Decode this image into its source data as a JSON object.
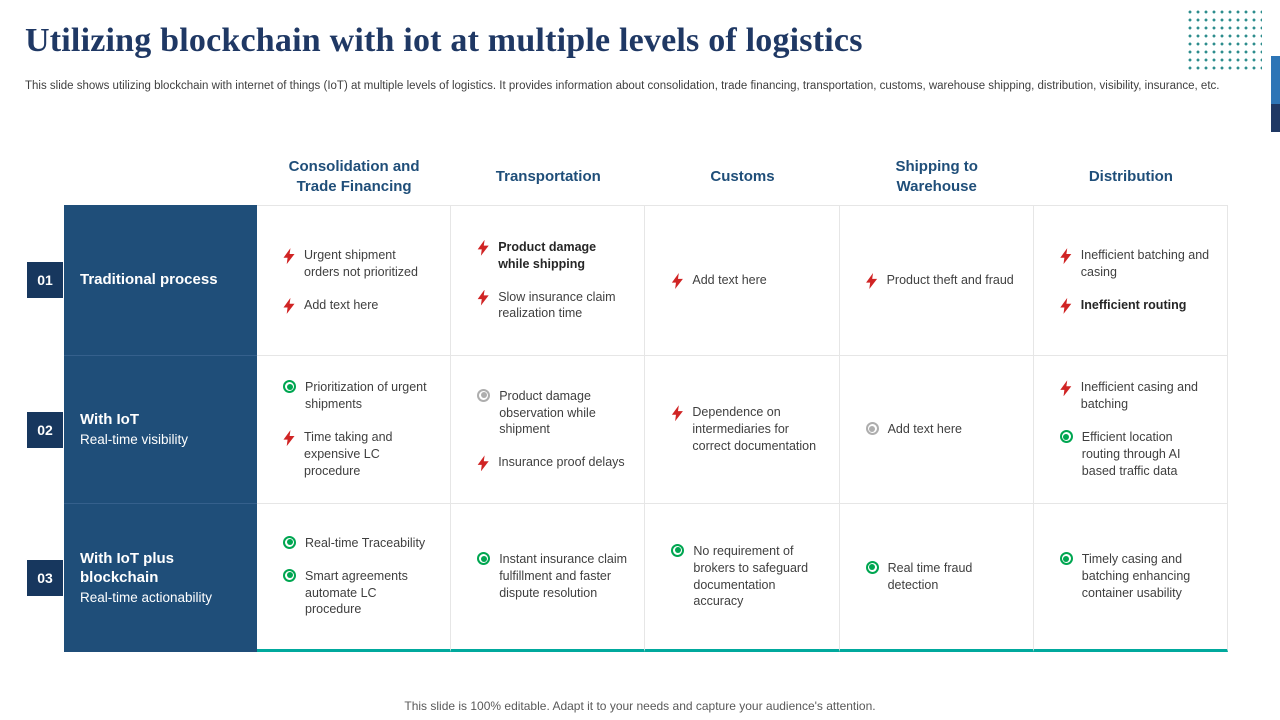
{
  "slide": {
    "title": "Utilizing blockchain with iot at multiple levels of logistics",
    "subtitle": "This slide shows utilizing blockchain with internet of things (IoT) at multiple levels of logistics. It provides information about consolidation, trade financing, transportation, customs, warehouse shipping, distribution, visibility, insurance, etc.",
    "footer": "This slide is 100% editable. Adapt it to your needs and capture your audience's attention."
  },
  "colors": {
    "title_navy": "#1f3864",
    "header_navy": "#1f4e79",
    "row_label_bg": "#1f4e79",
    "badge_bg": "#17375e",
    "bolt_red": "#d02424",
    "target_green": "#00a651",
    "target_gray": "#aeaeae",
    "dots_teal": "#2d8d8d",
    "bottom_line_teal": "#00a99d",
    "accent_bar_blue": "#2e75b6"
  },
  "table": {
    "columns": [
      "Consolidation and Trade Financing",
      "Transportation",
      "Customs",
      "Shipping to Warehouse",
      "Distribution"
    ],
    "rows": [
      {
        "number": "01",
        "label": "Traditional process",
        "sublabel": "",
        "cells": [
          {
            "items": [
              {
                "icon": "lightning-red",
                "text": "Urgent shipment orders not prioritized",
                "bold": false
              },
              {
                "icon": "lightning-red",
                "text": "Add text here",
                "bold": false
              }
            ]
          },
          {
            "items": [
              {
                "icon": "lightning-red",
                "text": "Product damage while shipping",
                "bold": true
              },
              {
                "icon": "lightning-red",
                "text": "Slow insurance claim realization time",
                "bold": false
              }
            ]
          },
          {
            "items": [
              {
                "icon": "lightning-red",
                "text": "Add text here",
                "bold": false
              }
            ]
          },
          {
            "items": [
              {
                "icon": "lightning-red",
                "text": "Product theft and fraud",
                "bold": false
              }
            ]
          },
          {
            "items": [
              {
                "icon": "lightning-red",
                "text": "Inefficient batching and casing",
                "bold": false
              },
              {
                "icon": "lightning-red",
                "text": "Inefficient routing",
                "bold": true
              }
            ]
          }
        ]
      },
      {
        "number": "02",
        "label": "With IoT",
        "sublabel": "Real-time visibility",
        "cells": [
          {
            "items": [
              {
                "icon": "target-green",
                "text": "Prioritization of urgent shipments",
                "bold": false
              },
              {
                "icon": "lightning-red",
                "text": "Time taking and expensive LC procedure",
                "bold": false
              }
            ]
          },
          {
            "items": [
              {
                "icon": "target-gray",
                "text": "Product damage observation while shipment",
                "bold": false
              },
              {
                "icon": "lightning-red",
                "text": "Insurance proof delays",
                "bold": false
              }
            ]
          },
          {
            "items": [
              {
                "icon": "lightning-red",
                "text": "Dependence on intermediaries for correct documentation",
                "bold": false
              }
            ]
          },
          {
            "items": [
              {
                "icon": "target-gray",
                "text": "Add text here",
                "bold": false
              }
            ]
          },
          {
            "items": [
              {
                "icon": "lightning-red",
                "text": "Inefficient casing and batching",
                "bold": false
              },
              {
                "icon": "target-green",
                "text": "Efficient location routing through AI based traffic data",
                "bold": false
              }
            ]
          }
        ]
      },
      {
        "number": "03",
        "label": "With IoT plus blockchain",
        "sublabel": "Real-time actionability",
        "cells": [
          {
            "items": [
              {
                "icon": "target-green",
                "text": "Real-time Traceability",
                "bold": false
              },
              {
                "icon": "target-green",
                "text": "Smart agreements automate LC procedure",
                "bold": false
              }
            ]
          },
          {
            "items": [
              {
                "icon": "target-green",
                "text": "Instant insurance claim fulfillment and faster dispute resolution",
                "bold": false
              }
            ]
          },
          {
            "items": [
              {
                "icon": "target-green",
                "text": "No requirement of brokers to safeguard documentation accuracy",
                "bold": false
              }
            ]
          },
          {
            "items": [
              {
                "icon": "target-green",
                "text": "Real time fraud detection",
                "bold": false
              }
            ]
          },
          {
            "items": [
              {
                "icon": "target-green",
                "text": "Timely casing and batching enhancing container usability",
                "bold": false
              }
            ]
          }
        ]
      }
    ]
  }
}
